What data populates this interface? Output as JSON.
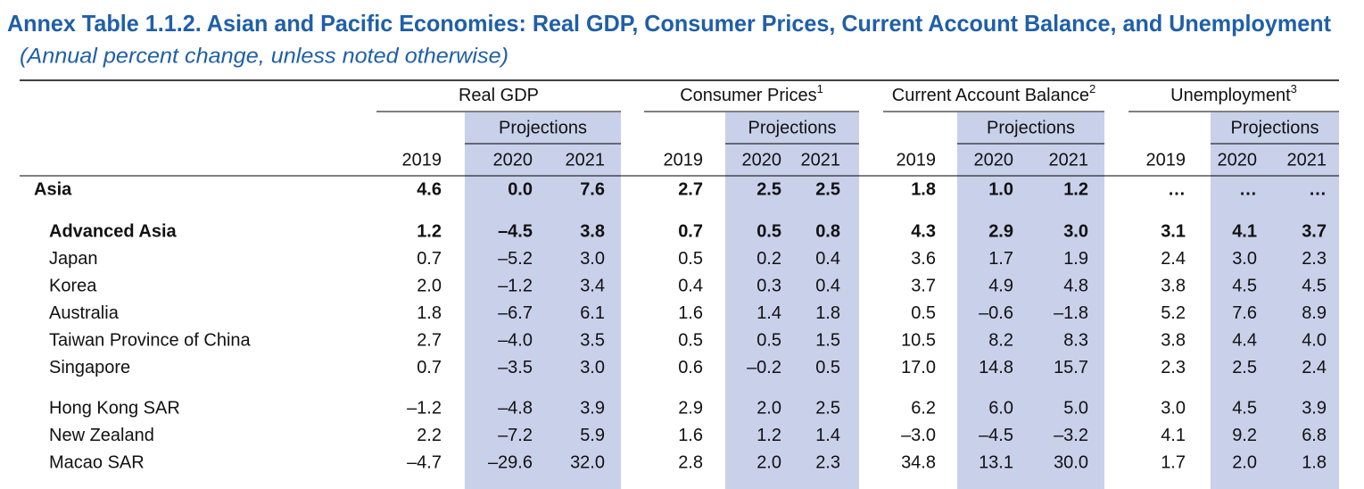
{
  "header": {
    "title": "Annex Table 1.1.2. Asian and Pacific Economies: Real GDP, Consumer Prices, Current Account Balance, and Unemployment",
    "subtitle": "(Annual percent change, unless noted otherwise)"
  },
  "table": {
    "column_groups": [
      {
        "name": "Real GDP",
        "subheader": "Projections",
        "years": [
          "2019",
          "2020",
          "2021"
        ]
      },
      {
        "name": "Consumer Prices",
        "note": "1",
        "subheader": "Projections",
        "years": [
          "2019",
          "2020",
          "2021"
        ]
      },
      {
        "name": "Current Account Balance",
        "note": "2",
        "subheader": "Projections",
        "years": [
          "2019",
          "2020",
          "2021"
        ]
      },
      {
        "name": "Unemployment",
        "note": "3",
        "subheader": "Projections",
        "years": [
          "2019",
          "2020",
          "2021"
        ]
      }
    ],
    "row_blocks": [
      [
        {
          "name": "Asia",
          "bold": true,
          "values": [
            "4.6",
            "0.0",
            "7.6",
            "2.7",
            "2.5",
            "2.5",
            "1.8",
            "1.0",
            "1.2",
            "…",
            "…",
            "…"
          ]
        }
      ],
      [
        {
          "name": "Advanced Asia",
          "bold": true,
          "values": [
            "1.2",
            "–4.5",
            "3.8",
            "0.7",
            "0.5",
            "0.8",
            "4.3",
            "2.9",
            "3.0",
            "3.1",
            "4.1",
            "3.7"
          ]
        },
        {
          "name": "Japan",
          "values": [
            "0.7",
            "–5.2",
            "3.0",
            "0.5",
            "0.2",
            "0.4",
            "3.6",
            "1.7",
            "1.9",
            "2.4",
            "3.0",
            "2.3"
          ]
        },
        {
          "name": "Korea",
          "values": [
            "2.0",
            "–1.2",
            "3.4",
            "0.4",
            "0.3",
            "0.4",
            "3.7",
            "4.9",
            "4.8",
            "3.8",
            "4.5",
            "4.5"
          ]
        },
        {
          "name": "Australia",
          "values": [
            "1.8",
            "–6.7",
            "6.1",
            "1.6",
            "1.4",
            "1.8",
            "0.5",
            "–0.6",
            "–1.8",
            "5.2",
            "7.6",
            "8.9"
          ]
        }
      ],
      [
        {
          "name": "Taiwan Province of China",
          "values": [
            "2.7",
            "–4.0",
            "3.5",
            "0.5",
            "0.5",
            "1.5",
            "10.5",
            "8.2",
            "8.3",
            "3.8",
            "4.4",
            "4.0"
          ]
        },
        {
          "name": "Singapore",
          "values": [
            "0.7",
            "–3.5",
            "3.0",
            "0.6",
            "–0.2",
            "0.5",
            "17.0",
            "14.8",
            "15.7",
            "2.3",
            "2.5",
            "2.4"
          ]
        }
      ],
      [
        {
          "name": "Hong Kong SAR",
          "values": [
            "–1.2",
            "–4.8",
            "3.9",
            "2.9",
            "2.0",
            "2.5",
            "6.2",
            "6.0",
            "5.0",
            "3.0",
            "4.5",
            "3.9"
          ]
        },
        {
          "name": "New Zealand",
          "values": [
            "2.2",
            "–7.2",
            "5.9",
            "1.6",
            "1.2",
            "1.4",
            "–3.0",
            "–4.5",
            "–3.2",
            "4.1",
            "9.2",
            "6.8"
          ]
        },
        {
          "name": "Macao SAR",
          "values": [
            "–4.7",
            "–29.6",
            "32.0",
            "2.8",
            "2.0",
            "2.3",
            "34.8",
            "13.1",
            "30.0",
            "1.7",
            "2.0",
            "1.8"
          ]
        }
      ]
    ]
  }
}
